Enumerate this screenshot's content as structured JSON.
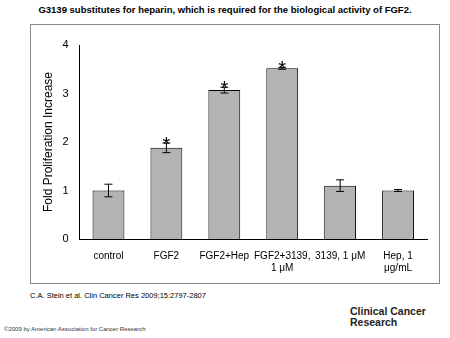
{
  "chart_data": {
    "type": "bar",
    "title": "G3139 substitutes for heparin, which is required for the biological activity of FGF2.",
    "y_label": "Fold Proliferation Increase",
    "categories": [
      "control",
      "FGF2",
      "FGF2+Hep",
      "FGF2+3139, 1 μM",
      "3139, 1 μM",
      "Hep, 1 μg/mL"
    ],
    "values": [
      1.0,
      1.88,
      3.07,
      3.52,
      1.1,
      1.0
    ],
    "errors": [
      0.13,
      0.1,
      0.06,
      0.02,
      0.12,
      0.02
    ],
    "color": "#b3b3b3",
    "ylim": [
      0,
      4
    ],
    "yticks": [
      0,
      1,
      2,
      3,
      4
    ],
    "grid": false,
    "annotations": [
      {
        "category": "FGF2",
        "text": "*"
      },
      {
        "category": "FGF2+Hep",
        "text": "*"
      },
      {
        "category": "FGF2+3139, 1 μM",
        "text": "*"
      }
    ],
    "source": "C.A. Stein et al. Clin Cancer Res 2009;15:2797-2807",
    "copyright": "©2009 by American Association for Cancer Research",
    "publisher": "Clinical Cancer Research"
  }
}
